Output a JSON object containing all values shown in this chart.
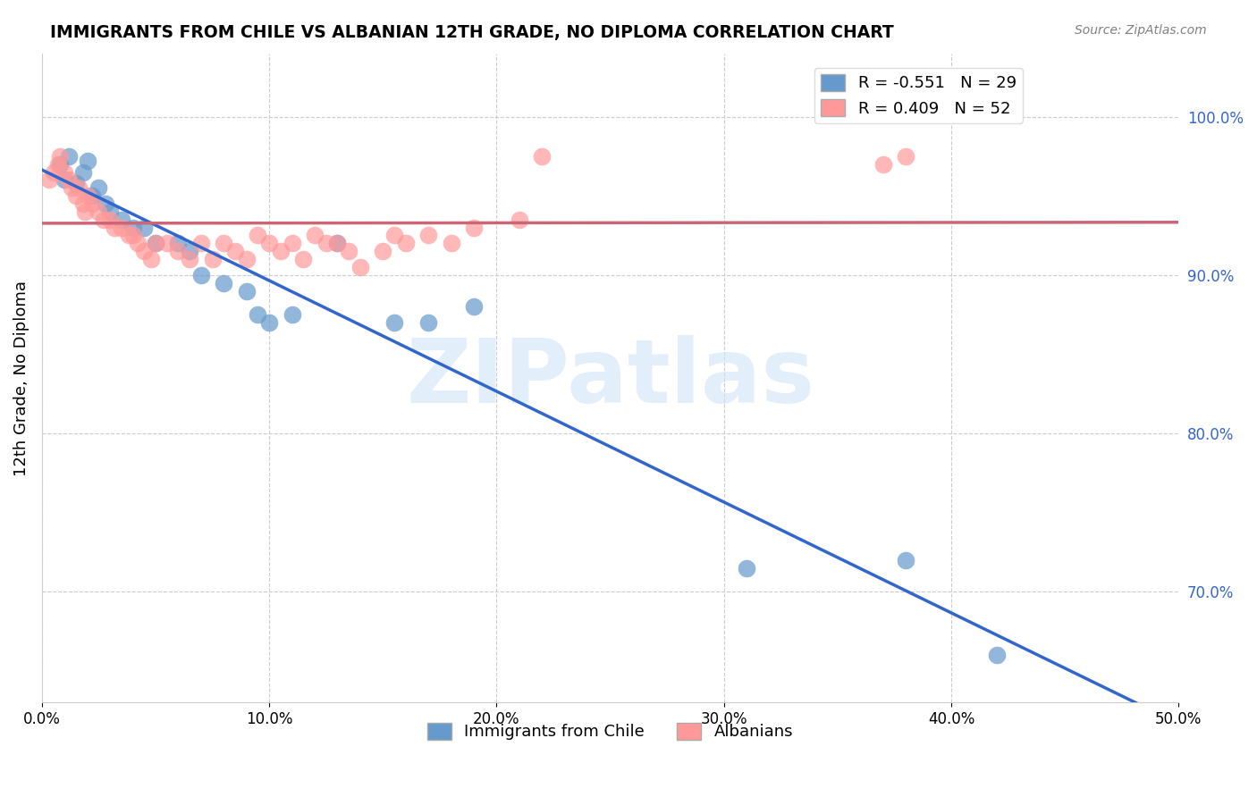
{
  "title": "IMMIGRANTS FROM CHILE VS ALBANIAN 12TH GRADE, NO DIPLOMA CORRELATION CHART",
  "source": "Source: ZipAtlas.com",
  "ylabel": "12th Grade, No Diploma",
  "xlim": [
    0.0,
    0.5
  ],
  "ylim": [
    0.63,
    1.04
  ],
  "x_ticks": [
    0.0,
    0.1,
    0.2,
    0.3,
    0.4,
    0.5
  ],
  "x_tick_labels": [
    "0.0%",
    "10.0%",
    "20.0%",
    "30.0%",
    "40.0%",
    "50.0%"
  ],
  "y_ticks_right": [
    0.7,
    0.8,
    0.9,
    1.0
  ],
  "y_tick_labels_right": [
    "70.0%",
    "80.0%",
    "90.0%",
    "100.0%"
  ],
  "grid_color": "#cccccc",
  "background_color": "#ffffff",
  "watermark": "ZIPatlas",
  "watermark_color": "#d0e4f7",
  "legend_R1": "-0.551",
  "legend_N1": "29",
  "legend_R2": "0.409",
  "legend_N2": "52",
  "blue_color": "#6699cc",
  "pink_color": "#ff9999",
  "blue_line_color": "#3366cc",
  "pink_line_color": "#cc6677",
  "chile_label": "Immigrants from Chile",
  "albanian_label": "Albanians",
  "chile_points_x": [
    0.008,
    0.01,
    0.012,
    0.015,
    0.018,
    0.02,
    0.022,
    0.025,
    0.028,
    0.03,
    0.035,
    0.04,
    0.045,
    0.05,
    0.06,
    0.065,
    0.07,
    0.08,
    0.09,
    0.095,
    0.1,
    0.11,
    0.13,
    0.155,
    0.17,
    0.19,
    0.31,
    0.38,
    0.42
  ],
  "chile_points_y": [
    0.97,
    0.96,
    0.975,
    0.958,
    0.965,
    0.972,
    0.95,
    0.955,
    0.945,
    0.94,
    0.935,
    0.93,
    0.93,
    0.92,
    0.92,
    0.915,
    0.9,
    0.895,
    0.89,
    0.875,
    0.87,
    0.875,
    0.92,
    0.87,
    0.87,
    0.88,
    0.715,
    0.72,
    0.66
  ],
  "albanian_points_x": [
    0.003,
    0.005,
    0.007,
    0.008,
    0.01,
    0.012,
    0.013,
    0.015,
    0.016,
    0.018,
    0.019,
    0.02,
    0.022,
    0.025,
    0.027,
    0.03,
    0.032,
    0.035,
    0.038,
    0.04,
    0.042,
    0.045,
    0.048,
    0.05,
    0.055,
    0.06,
    0.065,
    0.07,
    0.075,
    0.08,
    0.085,
    0.09,
    0.095,
    0.1,
    0.105,
    0.11,
    0.115,
    0.12,
    0.125,
    0.13,
    0.135,
    0.14,
    0.15,
    0.155,
    0.16,
    0.17,
    0.18,
    0.19,
    0.21,
    0.22,
    0.37,
    0.38
  ],
  "albanian_points_y": [
    0.96,
    0.965,
    0.97,
    0.975,
    0.965,
    0.96,
    0.955,
    0.95,
    0.955,
    0.945,
    0.94,
    0.95,
    0.945,
    0.94,
    0.935,
    0.935,
    0.93,
    0.93,
    0.925,
    0.925,
    0.92,
    0.915,
    0.91,
    0.92,
    0.92,
    0.915,
    0.91,
    0.92,
    0.91,
    0.92,
    0.915,
    0.91,
    0.925,
    0.92,
    0.915,
    0.92,
    0.91,
    0.925,
    0.92,
    0.92,
    0.915,
    0.905,
    0.915,
    0.925,
    0.92,
    0.925,
    0.92,
    0.93,
    0.935,
    0.975,
    0.97,
    0.975
  ]
}
